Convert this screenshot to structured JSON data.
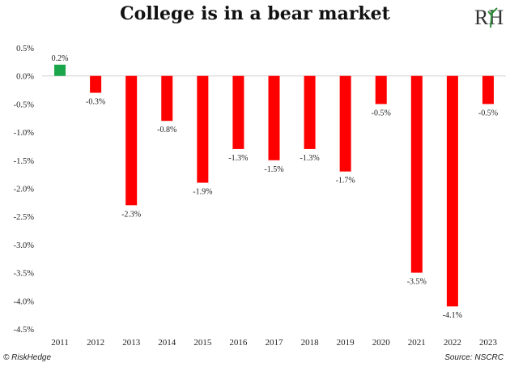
{
  "chart_data": {
    "type": "bar",
    "title": "College is in a bear market",
    "categories": [
      "2011",
      "2012",
      "2013",
      "2014",
      "2015",
      "2016",
      "2017",
      "2018",
      "2019",
      "2020",
      "2021",
      "2022",
      "2023"
    ],
    "values": [
      0.2,
      -0.3,
      -2.3,
      -0.8,
      -1.9,
      -1.3,
      -1.5,
      -1.3,
      -1.7,
      -0.5,
      -3.5,
      -4.1,
      -0.5
    ],
    "data_labels": [
      "0.2%",
      "-0.3%",
      "-2.3%",
      "-0.8%",
      "-1.9%",
      "-1.3%",
      "-1.5%",
      "-1.3%",
      "-1.7%",
      "-0.5%",
      "-3.5%",
      "-4.1%",
      "-0.5%"
    ],
    "y_ticks": [
      0.5,
      0.0,
      -0.5,
      -1.0,
      -1.5,
      -2.0,
      -2.5,
      -3.0,
      -3.5,
      -4.0,
      -4.5
    ],
    "y_tick_labels": [
      "0.5%",
      "0.0%",
      "-0.5%",
      "-1.0%",
      "-1.5%",
      "-2.0%",
      "-2.5%",
      "-3.0%",
      "-3.5%",
      "-4.0%",
      "-4.5%"
    ],
    "ylim": [
      -4.5,
      0.5
    ],
    "xlabel": "",
    "ylabel": "",
    "grid": false,
    "colors": {
      "positive": "#1aa64a",
      "negative": "#ff0000"
    }
  },
  "footer": {
    "left": "© RiskHedge",
    "right": "Source: NSCRC"
  },
  "logo": {
    "text": "RH",
    "icon": "riskhedge-logo"
  }
}
